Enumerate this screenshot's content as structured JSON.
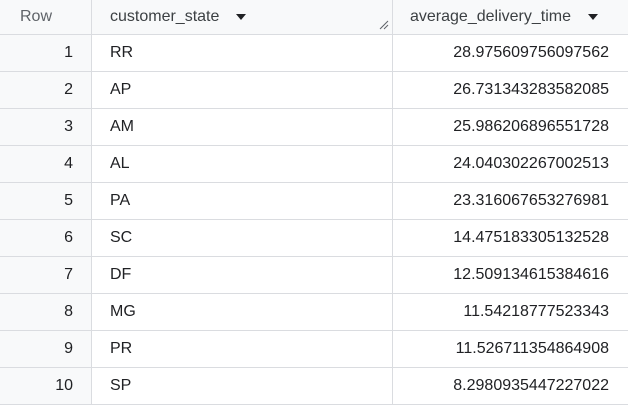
{
  "table": {
    "headers": {
      "row": "Row",
      "state": "customer_state",
      "value": "average_delivery_time"
    },
    "rows": [
      {
        "row": "1",
        "state": "RR",
        "value": "28.975609756097562"
      },
      {
        "row": "2",
        "state": "AP",
        "value": "26.731343283582085"
      },
      {
        "row": "3",
        "state": "AM",
        "value": "25.986206896551728"
      },
      {
        "row": "4",
        "state": "AL",
        "value": "24.040302267002513"
      },
      {
        "row": "5",
        "state": "PA",
        "value": "23.316067653276981"
      },
      {
        "row": "6",
        "state": "SC",
        "value": "14.475183305132528"
      },
      {
        "row": "7",
        "state": "DF",
        "value": "12.509134615384616"
      },
      {
        "row": "8",
        "state": "MG",
        "value": "11.54218777523343"
      },
      {
        "row": "9",
        "state": "PR",
        "value": "11.526711354864908"
      },
      {
        "row": "10",
        "state": "SP",
        "value": "8.2980935447227022"
      }
    ]
  },
  "icons": {
    "sort": "chevron-down-icon",
    "resize": "column-resize-icon"
  }
}
